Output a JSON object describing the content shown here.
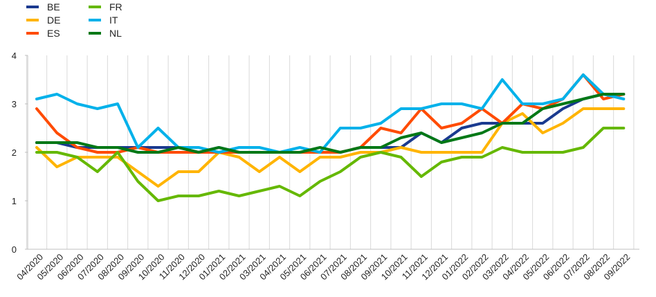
{
  "chart_data": {
    "type": "line",
    "title": "",
    "xlabel": "",
    "ylabel": "",
    "ylim": [
      0,
      4
    ],
    "yticks": [
      0,
      1,
      2,
      3,
      4
    ],
    "grid": "vertical",
    "legend_position": "top-left",
    "categories": [
      "04/2020",
      "05/2020",
      "06/2020",
      "07/2020",
      "08/2020",
      "09/2020",
      "10/2020",
      "11/2020",
      "12/2020",
      "01/2021",
      "02/2021",
      "03/2021",
      "04/2021",
      "05/2021",
      "06/2021",
      "07/2021",
      "08/2021",
      "09/2021",
      "10/2021",
      "11/2021",
      "12/2021",
      "01/2022",
      "02/2022",
      "03/2022",
      "04/2022",
      "05/2022",
      "06/2022",
      "07/2022",
      "08/2022",
      "09/2022"
    ],
    "series": [
      {
        "name": "BE",
        "color": "#1a3a8f",
        "values": [
          2.2,
          2.2,
          2.1,
          2.1,
          2.1,
          2.1,
          2.1,
          2.1,
          2.0,
          2.1,
          2.0,
          2.0,
          2.0,
          2.0,
          2.0,
          2.0,
          2.1,
          2.1,
          2.1,
          2.4,
          2.2,
          2.5,
          2.6,
          2.6,
          2.6,
          2.6,
          2.9,
          3.1,
          3.2,
          3.2
        ]
      },
      {
        "name": "DE",
        "color": "#ffb400",
        "values": [
          2.1,
          1.7,
          1.9,
          1.9,
          1.9,
          1.6,
          1.3,
          1.6,
          1.6,
          2.0,
          1.9,
          1.6,
          1.9,
          1.6,
          1.9,
          1.9,
          2.0,
          2.0,
          2.1,
          2.0,
          2.0,
          2.0,
          2.0,
          2.6,
          2.8,
          2.4,
          2.6,
          2.9,
          2.9,
          2.9
        ]
      },
      {
        "name": "ES",
        "color": "#ff4b00",
        "values": [
          2.9,
          2.4,
          2.1,
          2.0,
          2.0,
          2.1,
          2.0,
          2.0,
          2.0,
          2.0,
          2.0,
          2.0,
          2.0,
          2.0,
          2.0,
          2.0,
          2.1,
          2.5,
          2.4,
          2.9,
          2.5,
          2.6,
          2.9,
          2.6,
          3.0,
          2.9,
          3.1,
          3.6,
          3.1,
          3.2
        ]
      },
      {
        "name": "FR",
        "color": "#65b800",
        "values": [
          2.0,
          2.0,
          1.9,
          1.6,
          2.0,
          1.4,
          1.0,
          1.1,
          1.1,
          1.2,
          1.1,
          1.2,
          1.3,
          1.1,
          1.4,
          1.6,
          1.9,
          2.0,
          1.9,
          1.5,
          1.8,
          1.9,
          1.9,
          2.1,
          2.0,
          2.0,
          2.0,
          2.1,
          2.5,
          2.5
        ]
      },
      {
        "name": "IT",
        "color": "#00b1ea",
        "values": [
          3.1,
          3.2,
          3.0,
          2.9,
          3.0,
          2.1,
          2.5,
          2.1,
          2.1,
          2.0,
          2.1,
          2.1,
          2.0,
          2.1,
          2.0,
          2.5,
          2.5,
          2.6,
          2.9,
          2.9,
          3.0,
          3.0,
          2.9,
          3.5,
          3.0,
          3.0,
          3.1,
          3.6,
          3.2,
          3.1
        ]
      },
      {
        "name": "NL",
        "color": "#007816",
        "values": [
          2.2,
          2.2,
          2.2,
          2.1,
          2.1,
          2.0,
          2.0,
          2.1,
          2.0,
          2.1,
          2.0,
          2.0,
          2.0,
          2.0,
          2.1,
          2.0,
          2.1,
          2.1,
          2.3,
          2.4,
          2.2,
          2.3,
          2.4,
          2.6,
          2.6,
          2.9,
          3.0,
          3.1,
          3.2,
          3.2
        ]
      }
    ]
  }
}
